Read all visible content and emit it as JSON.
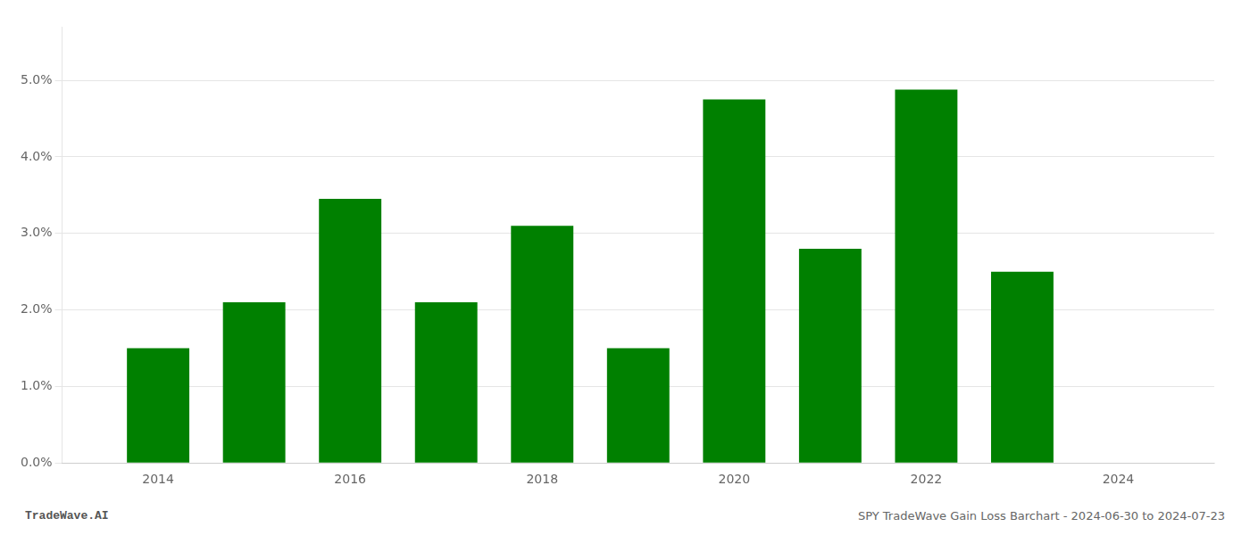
{
  "chart_data": {
    "type": "bar",
    "x": [
      2014,
      2015,
      2016,
      2017,
      2018,
      2019,
      2020,
      2021,
      2022,
      2023
    ],
    "values": [
      0.015,
      0.021,
      0.0345,
      0.021,
      0.031,
      0.015,
      0.0475,
      0.028,
      0.0488,
      0.025
    ],
    "color": "#008000",
    "xlim": [
      2013.0,
      2025.0
    ],
    "xticks": [
      2014,
      2016,
      2018,
      2020,
      2022,
      2024
    ],
    "ylim": [
      0,
      0.057
    ],
    "yticks": [
      {
        "value": 0.0,
        "label": "0.0%"
      },
      {
        "value": 0.01,
        "label": "1.0%"
      },
      {
        "value": 0.02,
        "label": "2.0%"
      },
      {
        "value": 0.03,
        "label": "3.0%"
      },
      {
        "value": 0.04,
        "label": "4.0%"
      },
      {
        "value": 0.05,
        "label": "5.0%"
      }
    ],
    "grid": "y",
    "annotations": [
      "TradeWave.AI",
      "SPY TradeWave Gain Loss Barchart - 2024-06-30 to 2024-07-23"
    ]
  }
}
